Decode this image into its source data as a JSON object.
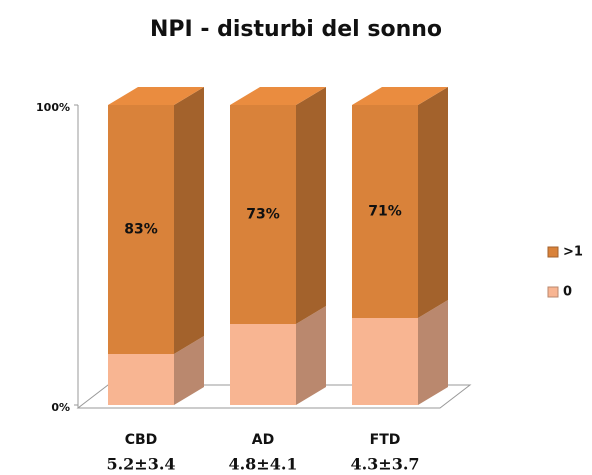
{
  "chart_data": {
    "type": "stacked_bar_3d",
    "title": "NPI - disturbi del sonno",
    "categories": [
      "CBD",
      "AD",
      "FTD"
    ],
    "category_sublabels": [
      "5.2±3.4",
      "4.8±4.1",
      "4.3±3.7"
    ],
    "series": [
      {
        "name": "0",
        "color": "#f8b592",
        "values": [
          17,
          27,
          29
        ]
      },
      {
        "name": ">1",
        "color": "#d9823a",
        "values": [
          83,
          73,
          71
        ],
        "value_labels": [
          "83%",
          "73%",
          "71%"
        ]
      }
    ],
    "ylim": [
      0,
      100
    ],
    "yticks": [
      {
        "value": 0,
        "label": "0%"
      },
      {
        "value": 100,
        "label": "100%"
      }
    ],
    "legend": "right"
  }
}
